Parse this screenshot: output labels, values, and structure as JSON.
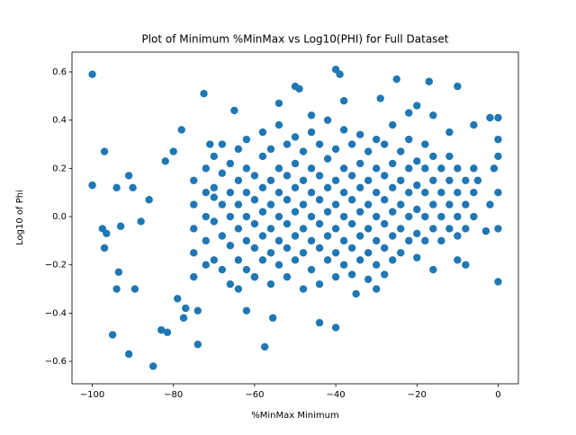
{
  "chart_data": {
    "type": "scatter",
    "title": "Plot of Minimum %MinMax vs Log10(PHI) for Full Dataset",
    "x_label": "%MinMax Minimum",
    "y_label": "Log10 of Phi",
    "xlim": [
      -105,
      5
    ],
    "ylim": [
      -0.693,
      0.682
    ],
    "xticks": [
      {
        "value": -100,
        "label": "−100"
      },
      {
        "value": -80,
        "label": "−80"
      },
      {
        "value": -60,
        "label": "−60"
      },
      {
        "value": -40,
        "label": "−40"
      },
      {
        "value": -20,
        "label": "−20"
      },
      0
    ],
    "yticks": [
      {
        "value": -0.6,
        "label": "−0.6"
      },
      {
        "value": -0.4,
        "label": "−0.4"
      },
      {
        "value": -0.2,
        "label": "−0.2"
      },
      {
        "value": 0,
        "label": "0.0"
      },
      0.2,
      0.4,
      0.6
    ],
    "series": [
      {
        "color": "#1f77b4",
        "x": [
          -100,
          -100,
          -97,
          -97.5,
          -97,
          -95,
          -94,
          -93.5,
          -91,
          -89.5,
          -91,
          -90,
          -94,
          -93,
          -96.5,
          -88,
          -86,
          -85,
          -83,
          -81.5,
          -82,
          -80,
          -78,
          -79,
          -77.5,
          -77,
          -74,
          -74,
          -72.5,
          -71,
          -65,
          -64,
          -62,
          -60,
          -57.5,
          -55.5,
          -54,
          -50,
          -49,
          -46,
          -44,
          -40,
          -39,
          -40,
          -38,
          -35,
          -30,
          -29,
          -25,
          -22,
          -20,
          -17,
          -16,
          -16,
          -12,
          -10,
          -10,
          -8,
          -6,
          -2,
          0,
          0,
          0,
          0,
          0,
          0,
          -1,
          -2,
          -3,
          -5,
          -75,
          -75,
          -75,
          -75,
          -75,
          -72,
          -72,
          -72,
          -72,
          -72,
          -70,
          -70,
          -70,
          -70,
          -70,
          -68,
          -68,
          -68,
          -68,
          -68,
          -66,
          -66,
          -66,
          -66,
          -66,
          -64,
          -64,
          -64,
          -64,
          -64,
          -62,
          -62,
          -62,
          -62,
          -62,
          -62,
          -60,
          -60,
          -60,
          -60,
          -60,
          -58,
          -58,
          -58,
          -58,
          -58,
          -58,
          -56,
          -56,
          -56,
          -56,
          -56,
          -56,
          -54,
          -54,
          -54,
          -54,
          -54,
          -54,
          -52,
          -52,
          -52,
          -52,
          -52,
          -52,
          -50,
          -50,
          -50,
          -50,
          -50,
          -50,
          -48,
          -48,
          -48,
          -48,
          -48,
          -48,
          -46,
          -46,
          -46,
          -46,
          -46,
          -46,
          -44,
          -44,
          -44,
          -44,
          -44,
          -44,
          -42,
          -42,
          -42,
          -42,
          -42,
          -42,
          -40,
          -40,
          -40,
          -40,
          -40,
          -40,
          -38,
          -38,
          -38,
          -38,
          -38,
          -38,
          -36,
          -36,
          -36,
          -36,
          -36,
          -36,
          -34,
          -34,
          -34,
          -34,
          -34,
          -34,
          -32,
          -32,
          -32,
          -32,
          -32,
          -32,
          -30,
          -30,
          -30,
          -30,
          -30,
          -30,
          -28,
          -28,
          -28,
          -28,
          -28,
          -28,
          -26,
          -26,
          -26,
          -26,
          -26,
          -26,
          -24,
          -24,
          -24,
          -24,
          -24,
          -22,
          -22,
          -22,
          -22,
          -22,
          -20,
          -20,
          -20,
          -20,
          -20,
          -18,
          -18,
          -18,
          -18,
          -18,
          -16,
          -16,
          -16,
          -16,
          -14,
          -14,
          -14,
          -14,
          -12,
          -12,
          -12,
          -12,
          -10,
          -10,
          -10,
          -10,
          -8,
          -8,
          -8,
          -6,
          -6,
          -6
        ],
        "values": [
          0.59,
          0.13,
          0.27,
          -0.05,
          -0.13,
          -0.49,
          -0.3,
          -0.23,
          -0.57,
          -0.3,
          0.17,
          0.12,
          0.12,
          -0.04,
          -0.07,
          -0.02,
          0.07,
          -0.62,
          -0.47,
          -0.48,
          0.23,
          0.27,
          0.36,
          -0.34,
          -0.42,
          -0.38,
          -0.53,
          -0.39,
          0.51,
          0.3,
          0.44,
          -0.3,
          -0.39,
          -0.25,
          -0.54,
          -0.42,
          0.47,
          0.54,
          0.53,
          0.42,
          -0.44,
          0.61,
          0.59,
          -0.46,
          0.48,
          -0.32,
          -0.3,
          0.49,
          0.57,
          0.43,
          0.46,
          0.56,
          0.42,
          -0.22,
          0.35,
          0.54,
          -0.18,
          -0.2,
          0.38,
          0.41,
          0.41,
          -0.27,
          0.32,
          0.25,
          0.1,
          -0.05,
          0.2,
          0.05,
          -0.06,
          0.15,
          -0.15,
          -0.05,
          0.05,
          0.15,
          -0.25,
          0.0,
          0.1,
          -0.1,
          0.2,
          -0.2,
          -0.02,
          0.12,
          -0.18,
          0.25,
          0.08,
          0.05,
          -0.08,
          0.18,
          -0.22,
          0.3,
          -0.12,
          0.0,
          0.1,
          0.22,
          -0.28,
          0.05,
          -0.05,
          0.15,
          -0.18,
          0.28,
          0.0,
          0.1,
          -0.1,
          0.2,
          -0.22,
          0.32,
          -0.03,
          0.07,
          0.17,
          -0.13,
          -0.25,
          0.02,
          0.12,
          -0.08,
          0.25,
          -0.18,
          0.35,
          -0.05,
          0.05,
          0.15,
          -0.15,
          0.28,
          -0.28,
          0.0,
          0.1,
          -0.1,
          0.2,
          -0.2,
          0.38,
          -0.03,
          0.07,
          0.17,
          -0.13,
          0.3,
          -0.25,
          0.02,
          0.12,
          -0.08,
          0.22,
          -0.18,
          0.33,
          -0.05,
          0.05,
          0.15,
          -0.15,
          0.27,
          -0.3,
          0.0,
          0.1,
          -0.1,
          0.2,
          -0.22,
          0.35,
          -0.03,
          0.07,
          0.17,
          -0.13,
          0.3,
          -0.28,
          0.02,
          0.12,
          -0.08,
          0.24,
          -0.18,
          0.4,
          -0.05,
          0.05,
          0.15,
          -0.15,
          0.28,
          -0.25,
          0.0,
          0.1,
          -0.1,
          0.2,
          -0.2,
          0.36,
          -0.03,
          0.07,
          0.17,
          -0.13,
          0.3,
          -0.24,
          0.02,
          0.12,
          -0.08,
          0.22,
          -0.18,
          0.34,
          -0.05,
          0.05,
          0.15,
          -0.15,
          0.27,
          -0.26,
          0.0,
          0.1,
          -0.1,
          0.2,
          -0.2,
          0.32,
          -0.03,
          0.07,
          0.17,
          -0.13,
          0.3,
          -0.24,
          0.02,
          0.12,
          -0.08,
          0.22,
          -0.18,
          0.38,
          -0.05,
          0.05,
          0.15,
          0.27,
          -0.15,
          0.0,
          0.1,
          -0.1,
          0.2,
          0.32,
          0.03,
          0.13,
          -0.07,
          0.23,
          -0.17,
          0.0,
          0.1,
          0.2,
          -0.1,
          0.3,
          0.05,
          0.15,
          -0.05,
          0.25,
          0.0,
          0.1,
          0.2,
          -0.1,
          0.05,
          0.15,
          -0.05,
          0.25,
          0.0,
          0.1,
          0.2,
          -0.08,
          0.05,
          0.15,
          -0.05,
          0.1,
          0.0,
          0.2
        ]
      }
    ]
  }
}
